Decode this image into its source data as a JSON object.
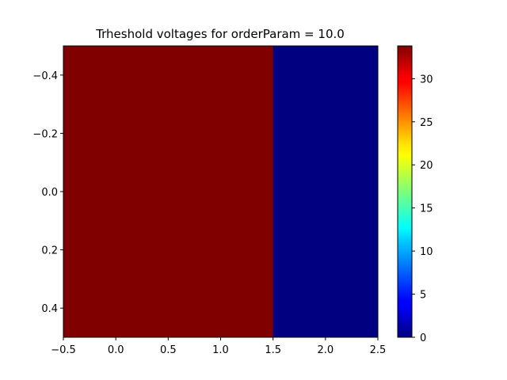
{
  "chart_data": {
    "type": "heatmap",
    "title": "Trheshold voltages for orderParam = 10.0",
    "xlabel": "",
    "ylabel": "",
    "x_ticks": [
      "−0.5",
      "0.0",
      "0.5",
      "1.0",
      "1.5",
      "2.0",
      "2.5"
    ],
    "y_ticks": [
      "−0.4",
      "−0.2",
      "0.0",
      "0.2",
      "0.4"
    ],
    "xlim": [
      -0.5,
      2.5
    ],
    "ylim": [
      0.5,
      -0.5
    ],
    "y_inverted": true,
    "columns": [
      0,
      1,
      2
    ],
    "rows": [
      0
    ],
    "values": [
      [
        33.8,
        33.8,
        0.0
      ]
    ],
    "colormap": "jet",
    "colorbar": {
      "range": [
        0,
        33.8
      ],
      "ticks": [
        "0",
        "5",
        "10",
        "15",
        "20",
        "25",
        "30"
      ],
      "position": "right"
    },
    "grid": false,
    "colors": {
      "max": "#800000",
      "min": "#000080"
    }
  }
}
